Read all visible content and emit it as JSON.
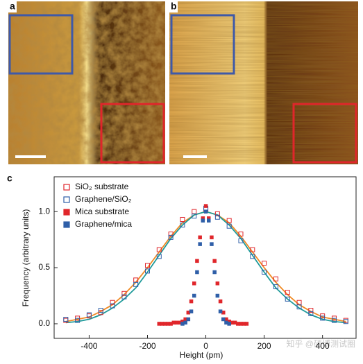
{
  "panel_labels": {
    "a": "a",
    "b": "b"
  },
  "watermark": "知乎 @硕博测试圈",
  "chart_data": {
    "type": "scatter",
    "panel_label": "c",
    "xlabel": "Height (pm)",
    "ylabel": "Frequency (arbitrary units)",
    "xlim": [
      -520,
      515
    ],
    "ylim": [
      -0.13,
      1.31
    ],
    "xticks": [
      -400,
      -200,
      0,
      200,
      400
    ],
    "yticks": [
      {
        "value": 0,
        "label": "0.0"
      },
      {
        "value": 0.5,
        "label": "0.5"
      },
      {
        "value": 1,
        "label": "1.0"
      }
    ],
    "legend": "upper left",
    "series": [
      {
        "name": "SiO₂ substrate",
        "color": "#e0262b",
        "marker": "open-square",
        "x": [
          -480,
          -440,
          -400,
          -360,
          -320,
          -280,
          -240,
          -200,
          -160,
          -120,
          -80,
          -40,
          0,
          40,
          80,
          120,
          160,
          200,
          240,
          280,
          320,
          360,
          400,
          440,
          480
        ],
        "values": [
          0.03,
          0.05,
          0.07,
          0.1,
          0.19,
          0.27,
          0.39,
          0.52,
          0.66,
          0.8,
          0.93,
          1.0,
          1.02,
          0.98,
          0.92,
          0.8,
          0.66,
          0.54,
          0.4,
          0.28,
          0.19,
          0.12,
          0.07,
          0.05,
          0.03
        ]
      },
      {
        "name": "Graphene/SiO₂",
        "color": "#2f5fa8",
        "marker": "open-square",
        "x": [
          -480,
          -440,
          -400,
          -360,
          -320,
          -280,
          -240,
          -200,
          -160,
          -120,
          -80,
          -40,
          0,
          40,
          80,
          120,
          160,
          200,
          240,
          280,
          320,
          360,
          400,
          440,
          480
        ],
        "values": [
          0.04,
          0.03,
          0.08,
          0.12,
          0.16,
          0.24,
          0.35,
          0.47,
          0.6,
          0.77,
          0.88,
          0.96,
          1.03,
          0.95,
          0.87,
          0.74,
          0.6,
          0.46,
          0.33,
          0.22,
          0.15,
          0.09,
          0.05,
          0.03,
          0.02
        ]
      },
      {
        "name": "Mica substrate",
        "color": "#e0262b",
        "marker": "filled-square",
        "x": [
          -160,
          -150,
          -140,
          -130,
          -120,
          -110,
          -100,
          -90,
          -80,
          -70,
          -60,
          -50,
          -40,
          -30,
          -20,
          -10,
          0,
          10,
          20,
          30,
          40,
          50,
          60,
          70,
          80,
          90,
          100,
          110,
          120,
          130,
          140
        ],
        "values": [
          0.0,
          0.0,
          0.0,
          0.0,
          0.0,
          0.01,
          0.01,
          0.01,
          0.02,
          0.04,
          0.1,
          0.2,
          0.36,
          0.56,
          0.77,
          0.94,
          1.05,
          0.94,
          0.77,
          0.56,
          0.36,
          0.2,
          0.1,
          0.04,
          0.02,
          0.01,
          0.01,
          0.0,
          0.0,
          0.0,
          0.0
        ]
      },
      {
        "name": "Graphene/mica",
        "color": "#2f5fa8",
        "marker": "filled-square",
        "x": [
          -80,
          -70,
          -60,
          -50,
          -40,
          -30,
          -20,
          -10,
          0,
          10,
          20,
          30,
          40,
          50,
          60,
          70,
          80
        ],
        "values": [
          0.0,
          0.01,
          0.04,
          0.11,
          0.25,
          0.46,
          0.71,
          0.92,
          1.0,
          0.92,
          0.71,
          0.46,
          0.25,
          0.11,
          0.04,
          0.01,
          0.0
        ]
      },
      {
        "color": "#f08a24",
        "marker": "line",
        "x": [
          -480,
          -440,
          -400,
          -360,
          -320,
          -280,
          -240,
          -200,
          -160,
          -120,
          -80,
          -40,
          0,
          40,
          80,
          120,
          160,
          200,
          240,
          280,
          320,
          360,
          400,
          440,
          480
        ],
        "values": [
          0.02,
          0.04,
          0.06,
          0.11,
          0.17,
          0.26,
          0.37,
          0.5,
          0.64,
          0.78,
          0.9,
          0.97,
          1.0,
          0.97,
          0.9,
          0.78,
          0.64,
          0.5,
          0.37,
          0.26,
          0.17,
          0.11,
          0.06,
          0.04,
          0.02
        ]
      },
      {
        "color": "#1f9a9a",
        "marker": "line",
        "x": [
          -480,
          -440,
          -400,
          -360,
          -320,
          -280,
          -240,
          -200,
          -160,
          -120,
          -80,
          -40,
          0,
          40,
          80,
          120,
          160,
          200,
          240,
          280,
          320,
          360,
          400,
          440,
          480
        ],
        "values": [
          0.01,
          0.02,
          0.04,
          0.08,
          0.14,
          0.22,
          0.32,
          0.46,
          0.61,
          0.76,
          0.88,
          0.97,
          1.0,
          0.97,
          0.88,
          0.76,
          0.61,
          0.46,
          0.32,
          0.22,
          0.14,
          0.08,
          0.04,
          0.02,
          0.01
        ]
      }
    ]
  }
}
